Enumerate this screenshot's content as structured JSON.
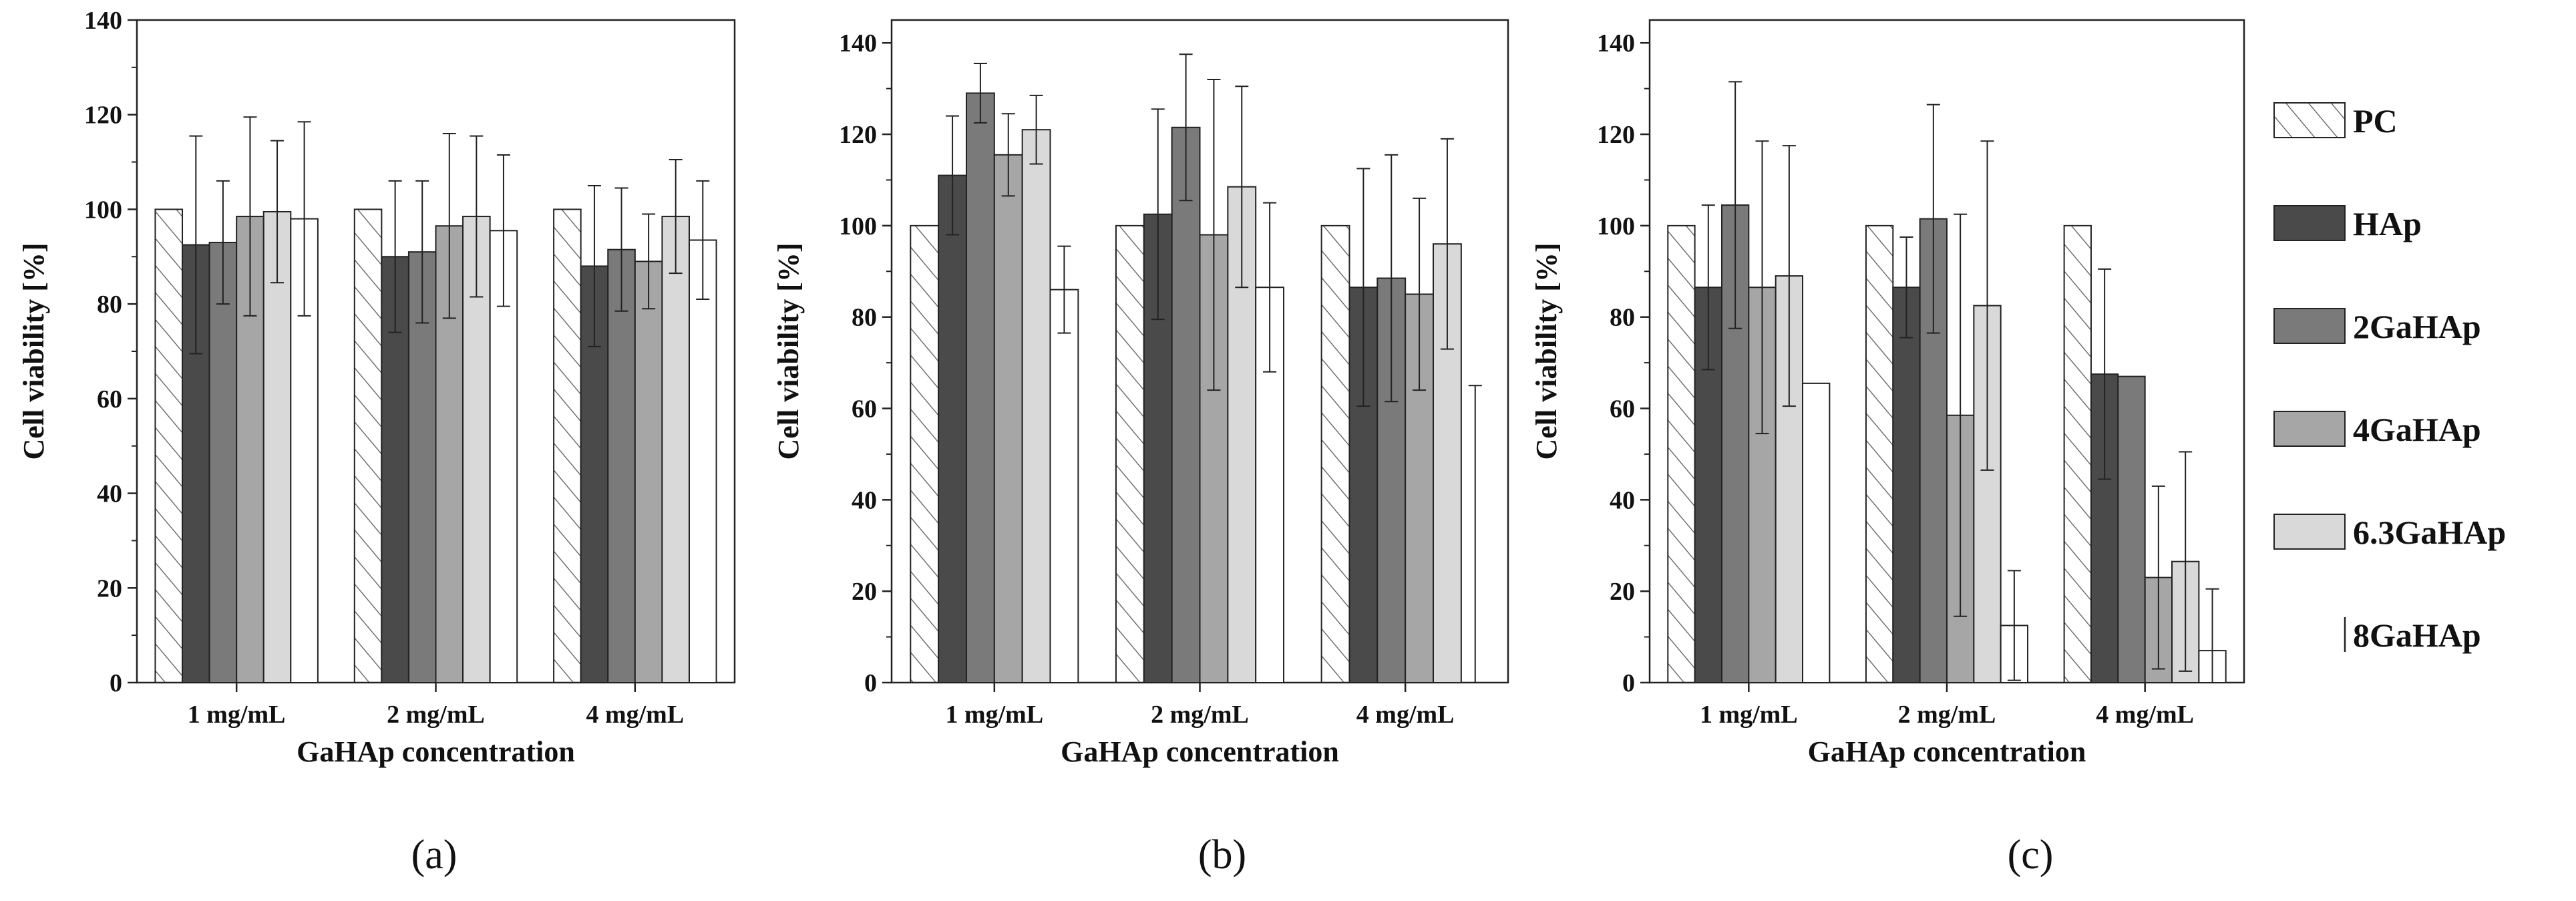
{
  "legend": {
    "items": [
      {
        "name": "PC",
        "style": "hatch"
      },
      {
        "name": "HAp",
        "color": "#4a4a4a"
      },
      {
        "name": "2GaHAp",
        "color": "#7a7a7a"
      },
      {
        "name": "4GaHAp",
        "color": "#a6a6a6"
      },
      {
        "name": "6.3GaHAp",
        "color": "#d9d9d9"
      },
      {
        "name": "8GaHAp",
        "color": "#ffffff"
      }
    ]
  },
  "chart_data": [
    {
      "type": "bar",
      "panel_label": "(a)",
      "ylabel": "Cell viability [%]",
      "xlabel": "GaHAp concentration",
      "ylim": [
        0,
        140
      ],
      "yticks": [
        0,
        20,
        40,
        60,
        80,
        100,
        120,
        140
      ],
      "categories": [
        "1 mg/mL",
        "2 mg/mL",
        "4 mg/mL"
      ],
      "series": [
        {
          "name": "PC",
          "values": [
            100,
            100,
            100
          ],
          "errors": [
            0,
            0,
            0
          ]
        },
        {
          "name": "HAp",
          "values": [
            92.5,
            90,
            88
          ],
          "errors": [
            23,
            16,
            17
          ]
        },
        {
          "name": "2GaHAp",
          "values": [
            93,
            91,
            91.5
          ],
          "errors": [
            13,
            15,
            13
          ]
        },
        {
          "name": "4GaHAp",
          "values": [
            98.5,
            96.5,
            89
          ],
          "errors": [
            21,
            19.5,
            10
          ]
        },
        {
          "name": "6.3GaHAp",
          "values": [
            99.5,
            98.5,
            98.5
          ],
          "errors": [
            15,
            17,
            12
          ]
        },
        {
          "name": "8GaHAp",
          "values": [
            98,
            95.5,
            93.5
          ],
          "errors": [
            20.5,
            16,
            12.5
          ]
        }
      ]
    },
    {
      "type": "bar",
      "panel_label": "(b)",
      "ylabel": "Cell viability [%]",
      "xlabel": "GaHAp concentration",
      "ylim": [
        0,
        145
      ],
      "yticks": [
        0,
        20,
        40,
        60,
        80,
        100,
        120,
        140
      ],
      "categories": [
        "1 mg/mL",
        "2 mg/mL",
        "4 mg/mL"
      ],
      "series": [
        {
          "name": "PC",
          "values": [
            100,
            100,
            100
          ],
          "errors": [
            0,
            0,
            0
          ]
        },
        {
          "name": "HAp",
          "values": [
            111,
            102.5,
            86.5
          ],
          "errors": [
            13,
            23,
            26
          ]
        },
        {
          "name": "2GaHAp",
          "values": [
            129,
            121.5,
            88.5
          ],
          "errors": [
            6.5,
            16,
            27
          ]
        },
        {
          "name": "4GaHAp",
          "values": [
            115.5,
            98,
            85
          ],
          "errors": [
            9,
            34,
            21
          ]
        },
        {
          "name": "6.3GaHAp",
          "values": [
            121,
            108.5,
            96
          ],
          "errors": [
            7.5,
            22,
            23
          ]
        },
        {
          "name": "8GaHAp",
          "values": [
            86,
            86.5,
            0
          ],
          "errors": [
            9.5,
            18.5,
            65
          ]
        }
      ]
    },
    {
      "type": "bar",
      "panel_label": "(c)",
      "ylabel": "Cell viability [%]",
      "xlabel": "GaHAp concentration",
      "ylim": [
        0,
        145
      ],
      "yticks": [
        0,
        20,
        40,
        60,
        80,
        100,
        120,
        140
      ],
      "categories": [
        "1 mg/mL",
        "2 mg/mL",
        "4 mg/mL"
      ],
      "series": [
        {
          "name": "PC",
          "values": [
            100,
            100,
            100
          ],
          "errors": [
            0,
            0,
            0
          ]
        },
        {
          "name": "HAp",
          "values": [
            86.5,
            86.5,
            67.5
          ],
          "errors": [
            18,
            11,
            23
          ]
        },
        {
          "name": "2GaHAp",
          "values": [
            104.5,
            101.5,
            67
          ],
          "errors": [
            27,
            25,
            0
          ]
        },
        {
          "name": "4GaHAp",
          "values": [
            86.5,
            58.5,
            23
          ],
          "errors": [
            32,
            44,
            20
          ]
        },
        {
          "name": "6.3GaHAp",
          "values": [
            89,
            82.5,
            26.5
          ],
          "errors": [
            28.5,
            36,
            24
          ]
        },
        {
          "name": "8GaHAp",
          "values": [
            65.5,
            12.5,
            7
          ],
          "errors": [
            0,
            12,
            13.5
          ]
        }
      ]
    }
  ]
}
